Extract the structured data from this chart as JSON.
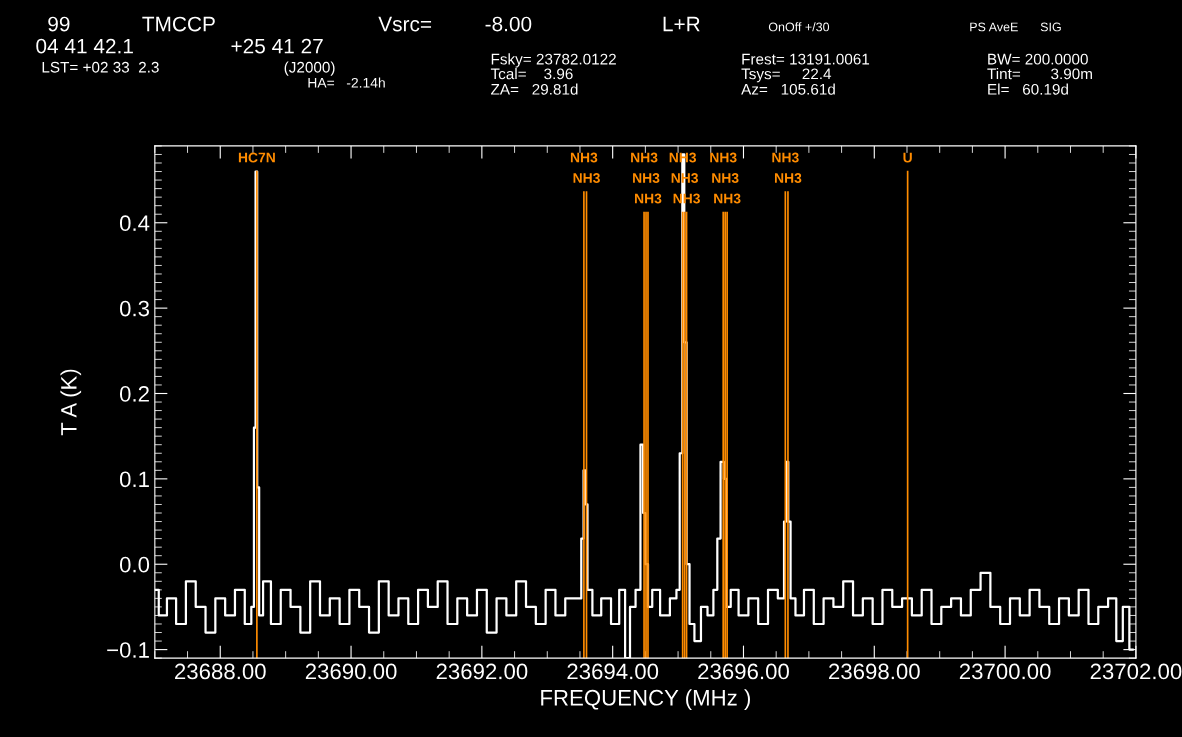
{
  "chart_data": {
    "type": "step",
    "xlabel": "FREQUENCY (MHz )",
    "ylabel": "T A (K)",
    "annotations": [
      "99",
      "TMCCP",
      "Vsrc=",
      "-8.00",
      "L+R",
      "OnOff +/30",
      "PS AveE",
      "SIG",
      "04 41 42.1",
      "+25 41 27",
      "LST= +02 33  2.3",
      "(J2000)",
      "HA=   -2.14h",
      "Fsky= 23782.0122",
      "Tcal=    3.96",
      "ZA=   29.81d",
      "Frest= 13191.0061",
      "Tsys=     22.4",
      "Az=   105.61d",
      "BW= 200.0000",
      "Tint=       3.90m",
      "El=   60.19d"
    ],
    "series": [
      {
        "color": "#ffffff",
        "x": [
          23687.0,
          23687.12,
          23687.25,
          23687.4,
          23687.55,
          23687.7,
          23687.85,
          23688.0,
          23688.15,
          23688.3,
          23688.45,
          23688.5,
          23688.53,
          23688.55,
          23688.58,
          23688.61,
          23688.7,
          23688.85,
          23689.0,
          23689.15,
          23689.3,
          23689.45,
          23689.6,
          23689.75,
          23689.9,
          23690.05,
          23690.2,
          23690.35,
          23690.5,
          23690.65,
          23690.8,
          23690.95,
          23691.1,
          23691.25,
          23691.4,
          23691.55,
          23691.7,
          23691.85,
          23692.0,
          23692.15,
          23692.3,
          23692.45,
          23692.6,
          23692.75,
          23692.9,
          23693.05,
          23693.2,
          23693.35,
          23693.5,
          23693.54,
          23693.57,
          23693.6,
          23693.63,
          23693.75,
          23693.9,
          23694.05,
          23694.15,
          23694.23,
          23694.3,
          23694.4,
          23694.45,
          23694.48,
          23694.52,
          23694.56,
          23694.65,
          23694.8,
          23694.95,
          23695.0,
          23695.05,
          23695.08,
          23695.11,
          23695.15,
          23695.2,
          23695.3,
          23695.4,
          23695.5,
          23695.58,
          23695.62,
          23695.68,
          23695.72,
          23695.76,
          23695.85,
          23696.0,
          23696.15,
          23696.3,
          23696.45,
          23696.6,
          23696.64,
          23696.67,
          23696.7,
          23696.74,
          23696.85,
          23697.0,
          23697.15,
          23697.3,
          23697.45,
          23697.6,
          23697.75,
          23697.9,
          23698.05,
          23698.2,
          23698.35,
          23698.5,
          23698.65,
          23698.8,
          23698.95,
          23699.1,
          23699.25,
          23699.4,
          23699.55,
          23699.7,
          23699.85,
          23700.0,
          23700.15,
          23700.3,
          23700.45,
          23700.6,
          23700.75,
          23700.9,
          23701.05,
          23701.2,
          23701.35,
          23701.5,
          23701.65,
          23701.75,
          23701.85,
          23701.95
        ],
        "values": [
          -0.03,
          -0.06,
          -0.04,
          -0.07,
          -0.02,
          -0.05,
          -0.08,
          -0.04,
          -0.06,
          -0.03,
          -0.07,
          -0.05,
          0.16,
          0.46,
          0.09,
          -0.06,
          -0.02,
          -0.07,
          -0.03,
          -0.05,
          -0.08,
          -0.02,
          -0.06,
          -0.04,
          -0.07,
          -0.03,
          -0.05,
          -0.08,
          -0.02,
          -0.06,
          -0.04,
          -0.07,
          -0.03,
          -0.05,
          -0.02,
          -0.07,
          -0.04,
          -0.06,
          -0.03,
          -0.08,
          -0.04,
          -0.06,
          -0.02,
          -0.05,
          -0.07,
          -0.03,
          -0.06,
          -0.04,
          -0.04,
          0.03,
          0.11,
          0.07,
          -0.03,
          -0.06,
          -0.04,
          -0.07,
          -0.03,
          -0.11,
          -0.05,
          -0.03,
          0.14,
          0.06,
          0.0,
          -0.05,
          -0.03,
          -0.06,
          -0.04,
          -0.03,
          0.13,
          0.48,
          0.26,
          0.0,
          -0.07,
          -0.09,
          -0.05,
          -0.06,
          -0.03,
          0.03,
          0.12,
          0.1,
          -0.05,
          -0.03,
          -0.06,
          -0.04,
          -0.07,
          -0.03,
          -0.04,
          0.05,
          0.12,
          0.05,
          -0.04,
          -0.06,
          -0.03,
          -0.07,
          -0.04,
          -0.05,
          -0.02,
          -0.06,
          -0.04,
          -0.07,
          -0.03,
          -0.05,
          -0.04,
          -0.06,
          -0.03,
          -0.07,
          -0.05,
          -0.04,
          -0.06,
          -0.03,
          -0.01,
          -0.05,
          -0.07,
          -0.04,
          -0.06,
          -0.03,
          -0.05,
          -0.07,
          -0.04,
          -0.06,
          -0.03,
          -0.07,
          -0.05,
          -0.04,
          -0.09,
          -0.05,
          -0.1
        ]
      }
    ],
    "ref_lines": [
      {
        "axis": "x",
        "value": 23688.56,
        "label": "HC7N",
        "color": "#ff8c00"
      },
      {
        "axis": "x",
        "value": 23693.56,
        "label": "NH3",
        "color": "#ff8c00"
      },
      {
        "axis": "x",
        "value": 23693.6,
        "label": "NH3",
        "color": "#ff8c00"
      },
      {
        "axis": "x",
        "value": 23694.48,
        "label": "NH3",
        "color": "#ff8c00"
      },
      {
        "axis": "x",
        "value": 23694.51,
        "label": "NH3",
        "color": "#ff8c00"
      },
      {
        "axis": "x",
        "value": 23694.54,
        "label": "NH3",
        "color": "#ff8c00"
      },
      {
        "axis": "x",
        "value": 23695.07,
        "label": "NH3",
        "color": "#ff8c00"
      },
      {
        "axis": "x",
        "value": 23695.1,
        "label": "NH3",
        "color": "#ff8c00"
      },
      {
        "axis": "x",
        "value": 23695.13,
        "label": "NH3",
        "color": "#ff8c00"
      },
      {
        "axis": "x",
        "value": 23695.69,
        "label": "NH3",
        "color": "#ff8c00"
      },
      {
        "axis": "x",
        "value": 23695.72,
        "label": "NH3",
        "color": "#ff8c00"
      },
      {
        "axis": "x",
        "value": 23695.75,
        "label": "NH3",
        "color": "#ff8c00"
      },
      {
        "axis": "x",
        "value": 23696.64,
        "label": "NH3",
        "color": "#ff8c00"
      },
      {
        "axis": "x",
        "value": 23696.68,
        "label": "NH3",
        "color": "#ff8c00"
      },
      {
        "axis": "x",
        "value": 23698.51,
        "label": "U",
        "color": "#ff8c00"
      }
    ],
    "xlim": [
      23687.0,
      23702.0
    ],
    "xticks": [
      {
        "value": 23688,
        "label": "23688.00"
      },
      {
        "value": 23690,
        "label": "23690.00"
      },
      {
        "value": 23692,
        "label": "23692.00"
      },
      {
        "value": 23694,
        "label": "23694.00"
      },
      {
        "value": 23696,
        "label": "23696.00"
      },
      {
        "value": 23698,
        "label": "23698.00"
      },
      {
        "value": 23700,
        "label": "23700.00"
      },
      {
        "value": 23702,
        "label": "23702.00"
      }
    ],
    "ylim": [
      -0.11,
      0.49
    ],
    "yticks": [
      {
        "value": -0.1,
        "label": "−0.1"
      },
      {
        "value": 0,
        "label": "0.0"
      },
      {
        "value": 0.1,
        "label": "0.1"
      },
      {
        "value": 0.2,
        "label": "0.2"
      },
      {
        "value": 0.3,
        "label": "0.3"
      },
      {
        "value": 0.4,
        "label": "0.4"
      }
    ],
    "grid": false,
    "legend": false
  }
}
